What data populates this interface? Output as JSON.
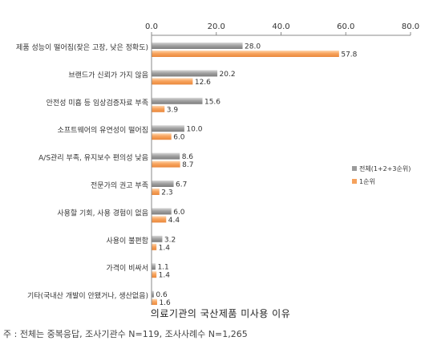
{
  "chart_data": {
    "type": "bar",
    "orientation": "horizontal",
    "categories": [
      "제품 성능이 떨어짐(잦은 고장, 낮은 정확도)",
      "브랜드가 신뢰가 가지 않음",
      "안전성 미흡 등 임상검증자료 부족",
      "소프트웨어의 유연성이 떨어짐",
      "A/S관리 부족, 유지보수 편의성 낮음",
      "전문가의 권고 부족",
      "사용할 기회, 사용 경험이 없음",
      "사용이 불편함",
      "가격이 비싸서",
      "기타(국내산 개발이 안됐거나, 생산없음)"
    ],
    "series": [
      {
        "name": "전체(1+2+3순위)",
        "values": [
          28.0,
          20.2,
          15.6,
          10.0,
          8.6,
          6.7,
          6.0,
          3.2,
          1.1,
          0.6
        ]
      },
      {
        "name": "1순위",
        "values": [
          57.8,
          12.6,
          3.9,
          6.0,
          8.7,
          2.3,
          4.4,
          1.4,
          1.4,
          1.6
        ]
      }
    ],
    "value_labels": [
      [
        "28.0",
        "20.2",
        "15.6",
        "10.0",
        "8.6",
        "6.7",
        "6.0",
        "3.2",
        "1.1",
        "0.6"
      ],
      [
        "57.8",
        "12.6",
        "3.9",
        "6.0",
        "8.7",
        "2.3",
        "4.4",
        "1.4",
        "1.4",
        "1.6"
      ]
    ],
    "xlim": [
      0,
      80
    ],
    "ticks": [
      0,
      20,
      40,
      60,
      80
    ],
    "tick_labels": [
      "0.0",
      "20.0",
      "40.0",
      "60.0",
      "80.0"
    ],
    "axis_position": "top",
    "grid": false,
    "legend_position": "right",
    "colors": [
      "#9b9b9b",
      "#f5a25d"
    ]
  },
  "caption": "의료기관의 국산제품 미사용 이유",
  "note": "주 : 전체는 중복응답, 조사기관수 N=119, 조사사례수 N=1,265"
}
